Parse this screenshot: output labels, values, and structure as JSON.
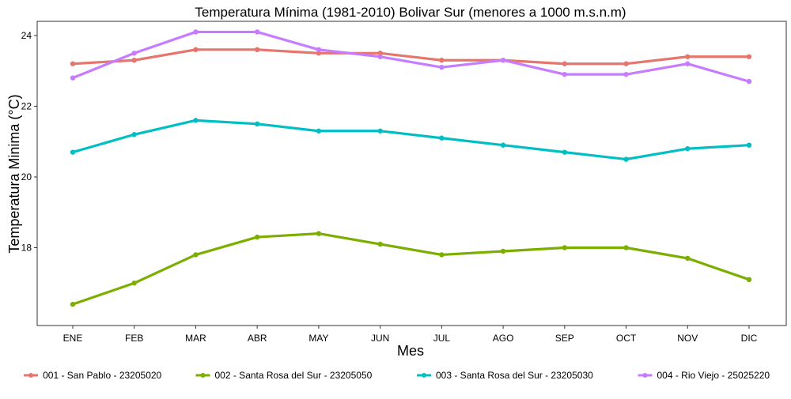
{
  "chart_data": {
    "type": "line",
    "title": "Temperatura Mínima (1981-2010) Bolivar Sur (menores a 1000 m.s.n.m)",
    "xlabel": "Mes",
    "ylabel": "Temperatura Minima (°C)",
    "categories": [
      "ENE",
      "FEB",
      "MAR",
      "ABR",
      "MAY",
      "JUN",
      "JUL",
      "AGO",
      "SEP",
      "OCT",
      "NOV",
      "DIC"
    ],
    "ylim": [
      15.8,
      24.4
    ],
    "yticks": [
      18,
      20,
      22,
      24
    ],
    "grid": false,
    "legend_position": "bottom",
    "series": [
      {
        "name": "001 - San Pablo - 23205020",
        "color": "#E5756D",
        "values": [
          23.2,
          23.3,
          23.6,
          23.6,
          23.5,
          23.5,
          23.3,
          23.3,
          23.2,
          23.2,
          23.4,
          23.4
        ]
      },
      {
        "name": "002 - Santa Rosa del Sur - 23205050",
        "color": "#7CAE00",
        "values": [
          16.4,
          17.0,
          17.8,
          18.3,
          18.4,
          18.1,
          17.8,
          17.9,
          18.0,
          18.0,
          17.7,
          17.1
        ]
      },
      {
        "name": "003 - Santa Rosa del Sur - 23205030",
        "color": "#00BFC4",
        "values": [
          20.7,
          21.2,
          21.6,
          21.5,
          21.3,
          21.3,
          21.1,
          20.9,
          20.7,
          20.5,
          20.8,
          20.9
        ]
      },
      {
        "name": "004 - Rio Viejo - 25025220",
        "color": "#C77CFF",
        "values": [
          22.8,
          23.5,
          24.1,
          24.1,
          23.6,
          23.4,
          23.1,
          23.3,
          22.9,
          22.9,
          23.2,
          22.7
        ]
      }
    ]
  }
}
